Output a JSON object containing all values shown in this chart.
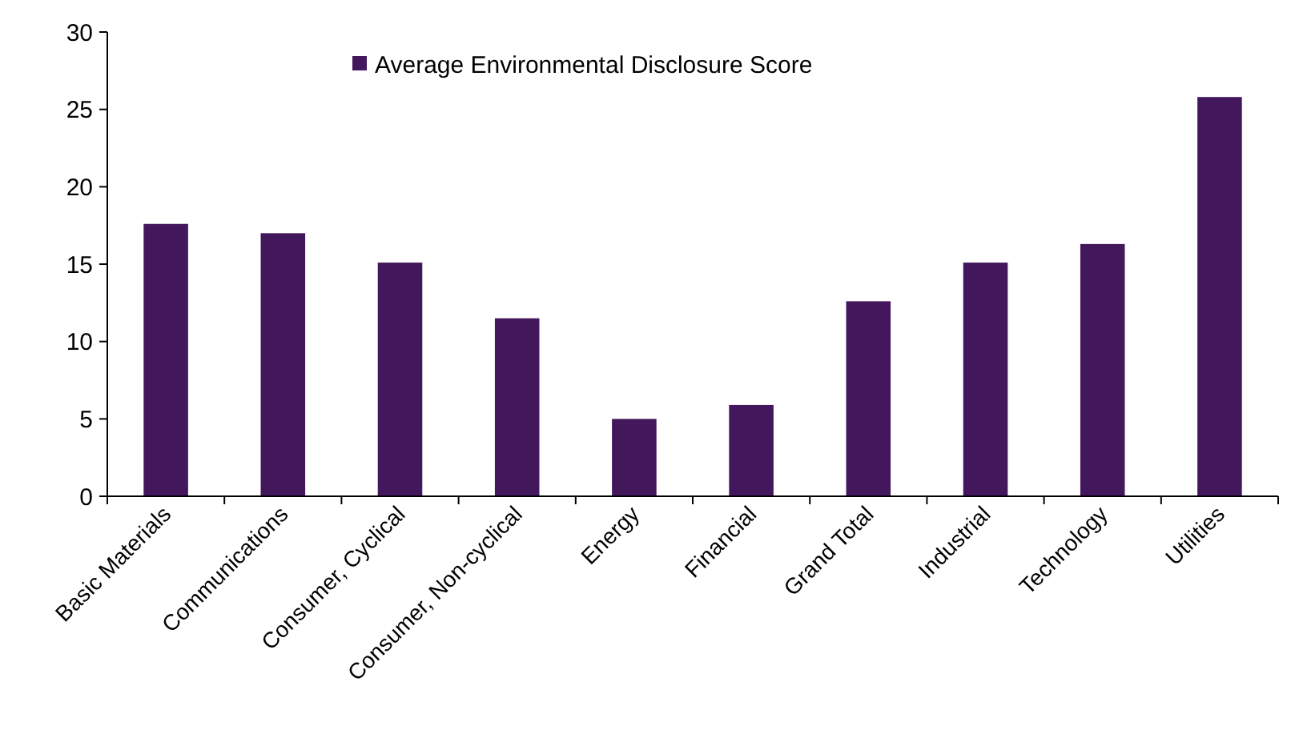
{
  "chart_data": {
    "type": "bar",
    "categories": [
      "Basic Materials",
      "Communications",
      "Consumer, Cyclical",
      "Consumer, Non-cyclical",
      "Energy",
      "Financial",
      "Grand Total",
      "Industrial",
      "Technology",
      "Utilities"
    ],
    "series": [
      {
        "name": "Average Environmental Disclosure Score",
        "color": "#43175c",
        "values": [
          17.6,
          17.0,
          15.1,
          11.5,
          5.0,
          5.9,
          12.6,
          15.1,
          16.3,
          25.8
        ]
      }
    ],
    "ylim": [
      0,
      30
    ],
    "yticks": [
      0,
      5,
      10,
      15,
      20,
      25,
      30
    ],
    "grid": false,
    "legend": "top"
  }
}
